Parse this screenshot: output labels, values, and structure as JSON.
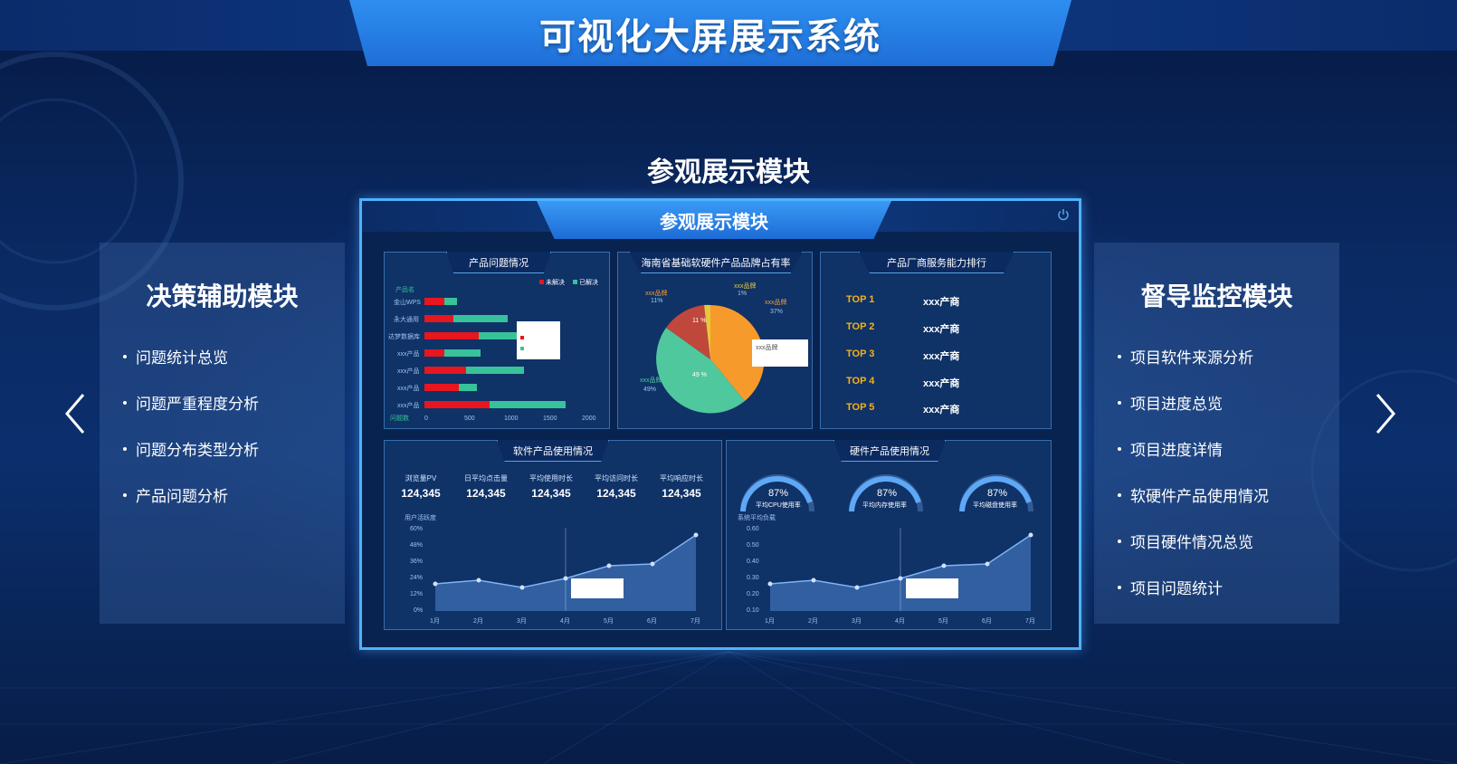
{
  "header": {
    "title": "可视化大屏展示系统"
  },
  "section_title": "参观展示模块",
  "left_panel": {
    "title": "决策辅助模块",
    "items": [
      "问题统计总览",
      "问题严重程度分析",
      "问题分布类型分析",
      "产品问题分析"
    ]
  },
  "right_panel": {
    "title": "督导监控模块",
    "items": [
      "项目软件来源分析",
      "项目进度总览",
      "项目进度详情",
      "软硬件产品使用情况",
      "项目硬件情况总览",
      "项目问题统计"
    ]
  },
  "nav": {
    "prev_icon": "chevron-left-icon",
    "next_icon": "chevron-right-icon"
  },
  "preview": {
    "title": "参观展示模块",
    "power_icon": "power-icon",
    "card1": {
      "title": "产品问题情况",
      "legend": [
        "未解决",
        "已解决"
      ],
      "axis_title": "产品名",
      "axis_bottom": "问题数",
      "rows": [
        "金山WPS",
        "永大通用",
        "达梦数据库",
        "xxx产品",
        "xxx产品",
        "xxx产品",
        "xxx产品"
      ],
      "ticks": [
        "0",
        "500",
        "1000",
        "1500",
        "2000"
      ]
    },
    "card2": {
      "title": "海南省基础软硬件产品品牌占有率",
      "labels": [
        "xxx品牌",
        "xxx品牌",
        "xxx品牌",
        "xxx品牌"
      ],
      "pcts": [
        "11%",
        "1%",
        "37%",
        "49%"
      ],
      "inner": [
        "11 %",
        "49 %"
      ],
      "tooltip": "xxx品牌"
    },
    "card3": {
      "title": "产品厂商服务能力排行",
      "ranks": [
        {
          "rank": "TOP 1",
          "name": "xxx产商"
        },
        {
          "rank": "TOP 2",
          "name": "xxx产商"
        },
        {
          "rank": "TOP 3",
          "name": "xxx产商"
        },
        {
          "rank": "TOP 4",
          "name": "xxx产商"
        },
        {
          "rank": "TOP 5",
          "name": "xxx产商"
        }
      ]
    },
    "card4": {
      "title": "软件产品使用情况",
      "stats": [
        {
          "label": "浏览量PV",
          "value": "124,345"
        },
        {
          "label": "日平均点击量",
          "value": "124,345"
        },
        {
          "label": "平均使用时长",
          "value": "124,345"
        },
        {
          "label": "平均访问时长",
          "value": "124,345"
        },
        {
          "label": "平均响应时长",
          "value": "124,345"
        }
      ],
      "chart_title": "用户活跃度",
      "yticks": [
        "60%",
        "48%",
        "36%",
        "24%",
        "12%",
        "0%"
      ],
      "xticks": [
        "1月",
        "2月",
        "3月",
        "4月",
        "5月",
        "6月",
        "7月"
      ]
    },
    "card5": {
      "title": "硬件产品使用情况",
      "gauges": [
        {
          "value": "87%",
          "label": "平均CPU使用率",
          "pct": 87
        },
        {
          "value": "87%",
          "label": "平均内存使用率",
          "pct": 87
        },
        {
          "value": "87%",
          "label": "平均磁盘使用率",
          "pct": 87
        }
      ],
      "chart_title": "系统平均负载",
      "yticks": [
        "0.60",
        "0.50",
        "0.40",
        "0.30",
        "0.20",
        "0.10"
      ],
      "xticks": [
        "1月",
        "2月",
        "3月",
        "4月",
        "5月",
        "6月",
        "7月"
      ]
    }
  },
  "colors": {
    "accent": "#2e8ef0",
    "border": "#4fb1ff",
    "rank": "#f5b11a",
    "unsolved": "#e8161e",
    "solved": "#38c29a"
  }
}
